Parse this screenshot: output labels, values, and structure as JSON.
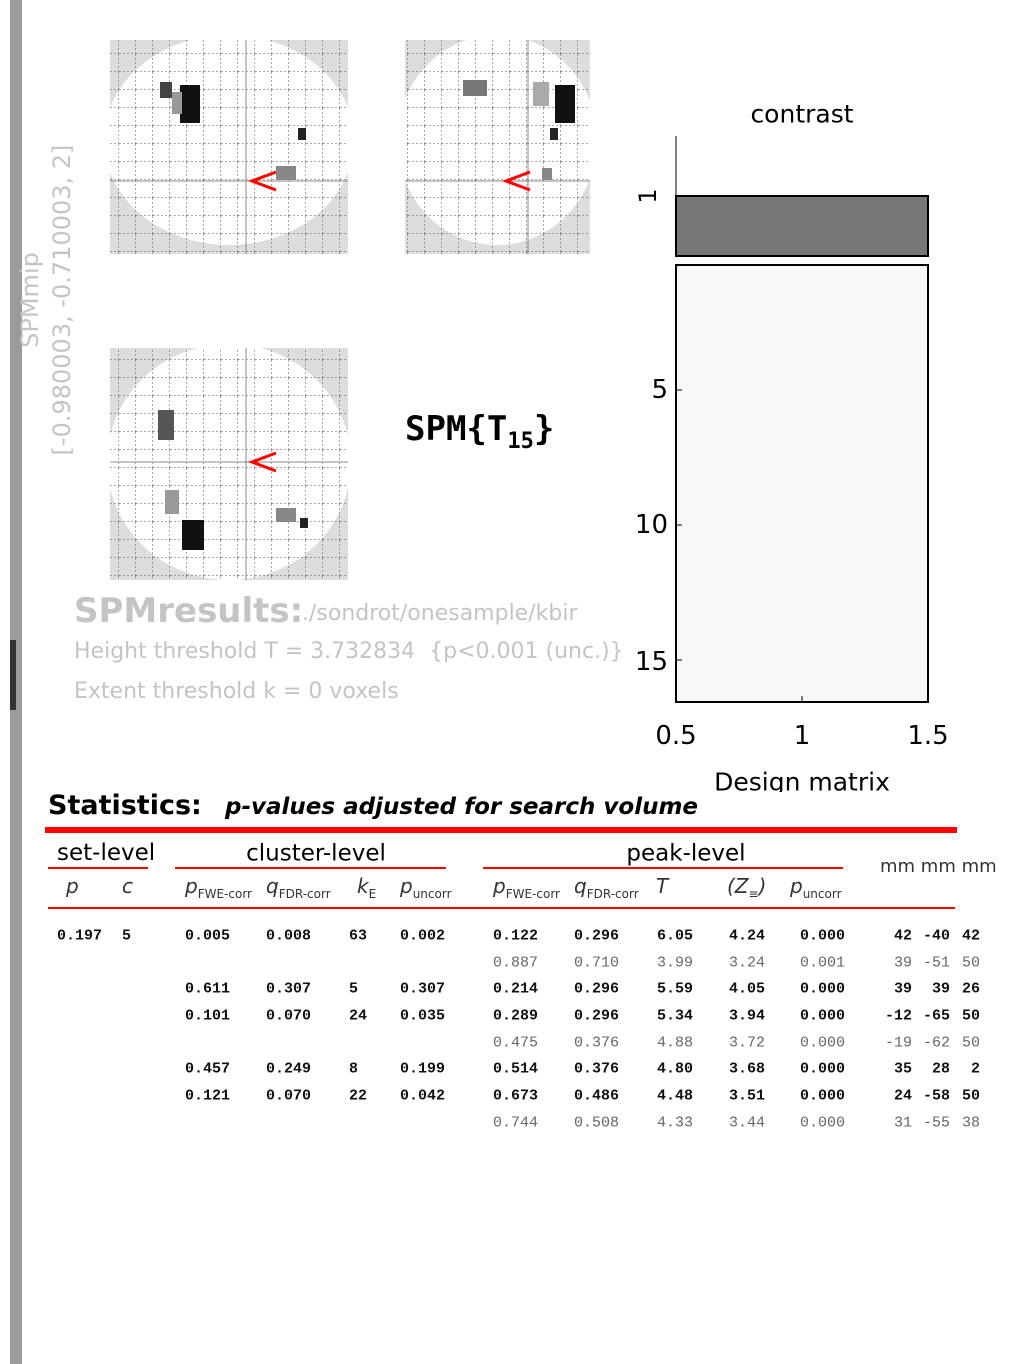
{
  "mip": {
    "label": "SPMmip",
    "coords": "[-0.980003, -0.710003, 2]"
  },
  "design": {
    "title": "contrast",
    "contrast_tick": "1",
    "yticks": [
      "5",
      "10",
      "15"
    ],
    "xticks": [
      "0.5",
      "1",
      "1.5"
    ],
    "xlabel": "Design matrix"
  },
  "spm_title": {
    "prefix": "SPM{T",
    "sub": "15",
    "suffix": "}"
  },
  "results": {
    "label": "SPMresults:",
    "path": "./sondrot/onesample/kbir",
    "height": "Height threshold T = 3.732834  {p<0.001 (unc.)}",
    "extent": "Extent threshold k = 0 voxels"
  },
  "statistics": {
    "label": "Statistics:",
    "subtitle": "p-values adjusted for search volume"
  },
  "table": {
    "groups": {
      "set": "set-level",
      "cluster": "cluster-level",
      "peak": "peak-level",
      "mm": "mm mm mm"
    },
    "headers": {
      "set": [
        {
          "text": "p"
        },
        {
          "text": "c"
        }
      ],
      "cluster": [
        {
          "text": "p",
          "sub": "FWE-corr"
        },
        {
          "text": "q",
          "sub": "FDR-corr"
        },
        {
          "text": "k",
          "sub": "E"
        },
        {
          "text": "p",
          "sub": "uncorr"
        }
      ],
      "peak": [
        {
          "text": "p",
          "sub": "FWE-corr"
        },
        {
          "text": "q",
          "sub": "FDR-corr"
        },
        {
          "text": "T"
        },
        {
          "text": "(Z",
          "sub": "≡",
          "after": ")"
        },
        {
          "text": "p",
          "sub": "uncorr"
        }
      ]
    },
    "rows": [
      {
        "set": [
          "0.197",
          "5"
        ],
        "cluster": [
          "0.005",
          "0.008",
          "63",
          "0.002"
        ],
        "peak": [
          "0.122",
          "0.296",
          "6.05",
          "4.24",
          "0.000"
        ],
        "mm": [
          "42",
          "-40",
          "42"
        ]
      },
      {
        "peak": [
          "0.887",
          "0.710",
          "3.99",
          "3.24",
          "0.001"
        ],
        "mm": [
          "39",
          "-51",
          "50"
        ]
      },
      {
        "cluster": [
          "0.611",
          "0.307",
          "5",
          "0.307"
        ],
        "peak": [
          "0.214",
          "0.296",
          "5.59",
          "4.05",
          "0.000"
        ],
        "mm": [
          "39",
          "39",
          "26"
        ]
      },
      {
        "cluster": [
          "0.101",
          "0.070",
          "24",
          "0.035"
        ],
        "peak": [
          "0.289",
          "0.296",
          "5.34",
          "3.94",
          "0.000"
        ],
        "mm": [
          "-12",
          "-65",
          "50"
        ]
      },
      {
        "peak": [
          "0.475",
          "0.376",
          "4.88",
          "3.72",
          "0.000"
        ],
        "mm": [
          "-19",
          "-62",
          "50"
        ]
      },
      {
        "cluster": [
          "0.457",
          "0.249",
          "8",
          "0.199"
        ],
        "peak": [
          "0.514",
          "0.376",
          "4.80",
          "3.68",
          "0.000"
        ],
        "mm": [
          "35",
          "28",
          "2"
        ]
      },
      {
        "cluster": [
          "0.121",
          "0.070",
          "22",
          "0.042"
        ],
        "peak": [
          "0.673",
          "0.486",
          "4.48",
          "3.51",
          "0.000"
        ],
        "mm": [
          "24",
          "-58",
          "50"
        ]
      },
      {
        "peak": [
          "0.744",
          "0.508",
          "4.33",
          "3.44",
          "0.000"
        ],
        "mm": [
          "31",
          "-55",
          "38"
        ]
      }
    ]
  }
}
